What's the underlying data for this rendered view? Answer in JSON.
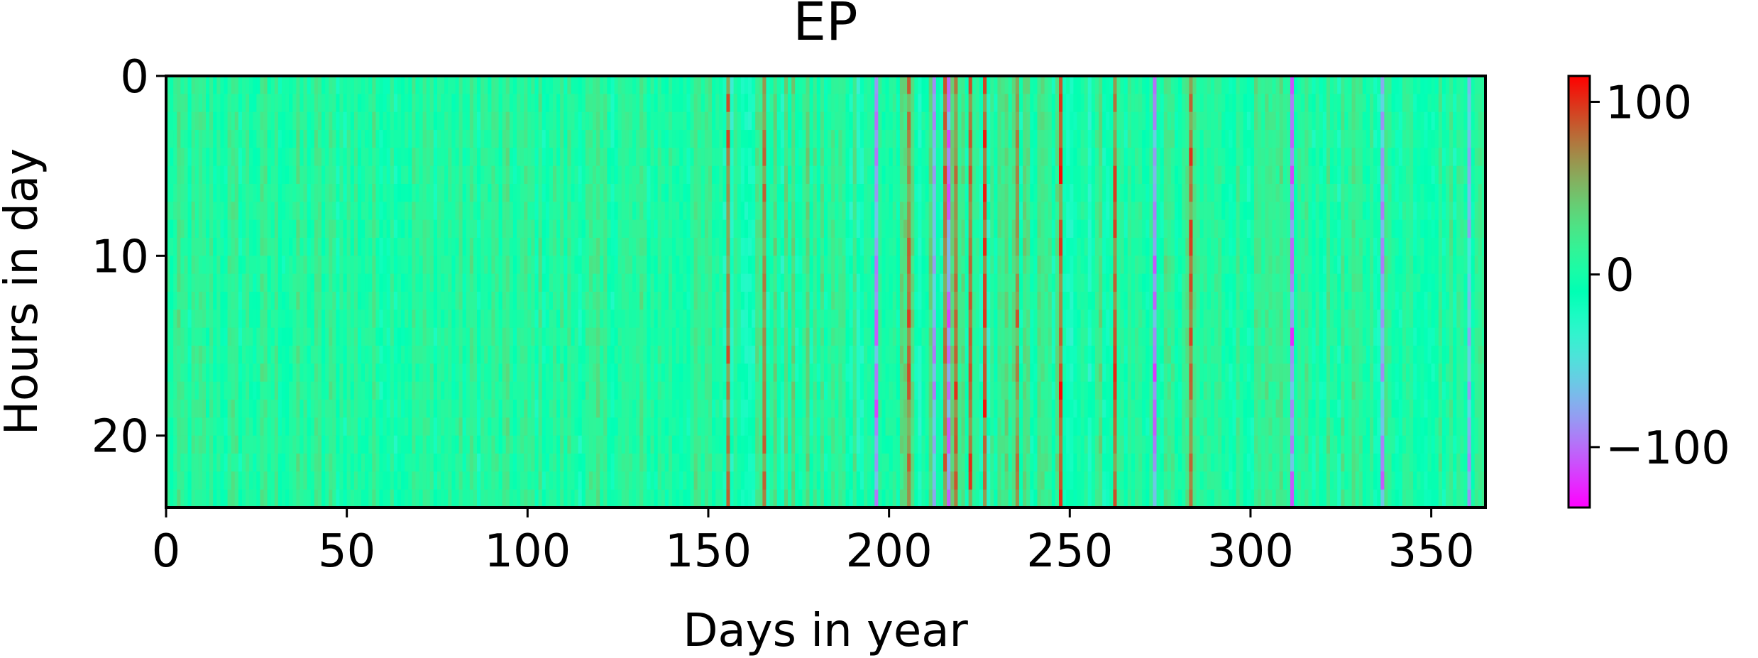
{
  "chart_data": {
    "type": "heatmap",
    "title": "EP",
    "xlabel": "Days in year",
    "ylabel": "Hours in day",
    "x_range": [
      0,
      365
    ],
    "y_range": [
      0,
      24
    ],
    "y_inverted": true,
    "x_ticks": [
      0,
      50,
      100,
      150,
      200,
      250,
      300,
      350
    ],
    "y_ticks": [
      0,
      10,
      20
    ],
    "colorbar": {
      "colormap": "rainbow",
      "vmin": -135,
      "vmax": 115,
      "ticks": [
        100,
        0,
        -100
      ],
      "tick_labels": [
        "100",
        "0",
        "−100"
      ]
    },
    "grid": false,
    "notes_visible_features": {
      "strong_positive_days": [
        155,
        165,
        205,
        212,
        215,
        218,
        222,
        226,
        235,
        247,
        262,
        283
      ],
      "strong_negative_days": [
        196,
        212,
        216,
        273,
        311,
        336,
        360
      ]
    }
  }
}
